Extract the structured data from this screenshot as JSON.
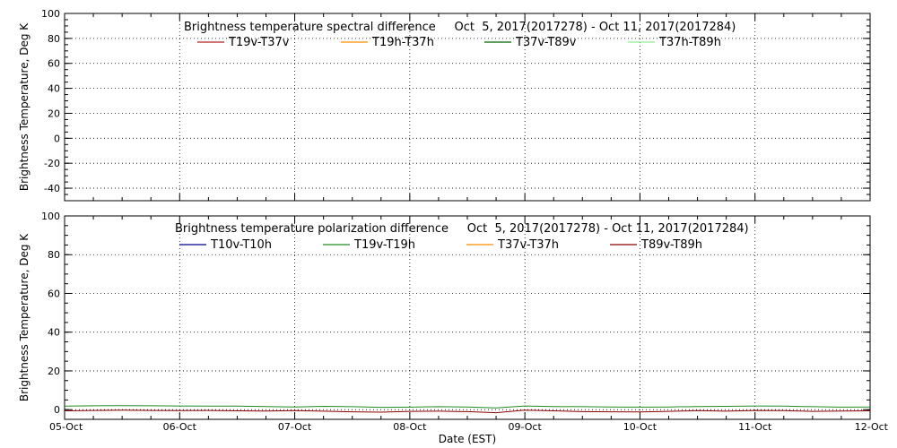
{
  "chart_data": [
    {
      "type": "line",
      "title": "Brightness temperature spectral difference     Oct  5, 2017(2017278) - Oct 11, 2017(2017284)",
      "ylabel": "Brightness Temperature, Deg K",
      "xlabel": "",
      "ylim": [
        -50,
        100
      ],
      "yticks": [
        100,
        80,
        60,
        40,
        20,
        0,
        -20,
        -40
      ],
      "grid": "dotted",
      "legend_position": "top",
      "series": [
        {
          "name": "T19v-T37v",
          "color": "#b22222",
          "x": [],
          "y": []
        },
        {
          "name": "T19h-T37h",
          "color": "#ff8c00",
          "x": [],
          "y": []
        },
        {
          "name": "T37v-T89v",
          "color": "#006400",
          "x": [],
          "y": []
        },
        {
          "name": "T37h-T89h",
          "color": "#90ee90",
          "x": [],
          "y": []
        }
      ]
    },
    {
      "type": "line",
      "title": "Brightness temperature polarization difference     Oct  5, 2017(2017278) - Oct 11, 2017(2017284)",
      "ylabel": "Brightness Temperature, Deg K",
      "xlabel": "Date (EST)",
      "ylim": [
        -5,
        100
      ],
      "yticks": [
        100,
        80,
        60,
        40,
        20,
        0
      ],
      "xlim": [
        0,
        7
      ],
      "xticks": [
        "05-Oct",
        "06-Oct",
        "07-Oct",
        "08-Oct",
        "09-Oct",
        "10-Oct",
        "11-Oct",
        "12-Oct"
      ],
      "grid": "dotted",
      "legend_position": "top",
      "series": [
        {
          "name": "T10v-T10h",
          "color": "#00008b",
          "x": [],
          "y": []
        },
        {
          "name": "T19v-T19h",
          "color": "#228b22",
          "x": [
            0,
            0.25,
            0.5,
            0.75,
            1,
            1.25,
            1.5,
            1.75,
            2,
            2.25,
            2.5,
            2.75,
            3,
            3.25,
            3.5,
            3.75,
            4,
            4.25,
            4.5,
            4.75,
            5,
            5.25,
            5.5,
            5.75,
            6,
            6.25,
            6.5,
            6.75,
            7
          ],
          "y": [
            1.8,
            2.0,
            2.1,
            2.0,
            1.9,
            1.8,
            1.8,
            1.6,
            1.4,
            1.7,
            1.5,
            1.2,
            1.3,
            1.5,
            1.4,
            0.9,
            1.9,
            1.6,
            1.5,
            1.4,
            1.3,
            1.4,
            1.6,
            1.7,
            1.9,
            1.8,
            1.5,
            1.3,
            1.4
          ]
        },
        {
          "name": "T37v-T37h",
          "color": "#ff8c00",
          "x": [],
          "y": []
        },
        {
          "name": "T89v-T89h",
          "color": "#8b0000",
          "x": [
            0,
            0.25,
            0.5,
            0.75,
            1,
            1.25,
            1.5,
            1.75,
            2,
            2.25,
            2.5,
            2.75,
            3,
            3.25,
            3.5,
            3.75,
            4,
            4.25,
            4.5,
            4.75,
            5,
            5.25,
            5.5,
            5.75,
            6,
            6.25,
            6.5,
            6.75,
            7
          ],
          "y": [
            -0.6,
            -0.4,
            -0.3,
            -0.4,
            -0.5,
            -0.4,
            -0.6,
            -0.7,
            -0.5,
            -0.8,
            -1.1,
            -1.3,
            -0.9,
            -0.8,
            -1.0,
            -1.6,
            -0.3,
            -0.6,
            -1.0,
            -1.1,
            -1.2,
            -0.9,
            -0.5,
            -0.8,
            -0.4,
            -0.5,
            -0.9,
            -0.7,
            -0.6
          ]
        }
      ]
    }
  ]
}
